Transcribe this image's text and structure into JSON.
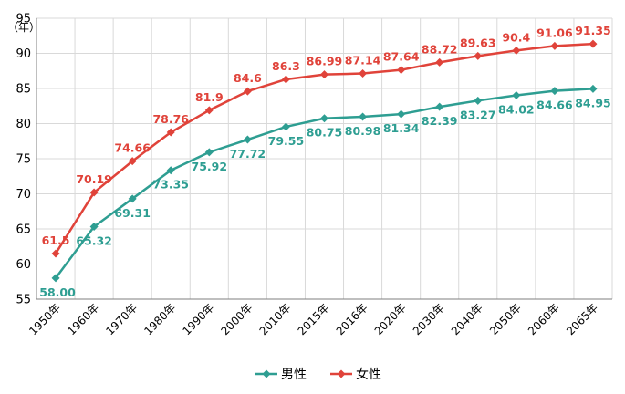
{
  "chart_data": {
    "type": "line",
    "unit_label": "（年）",
    "categories": [
      "1950年",
      "1960年",
      "1970年",
      "1980年",
      "1990年",
      "2000年",
      "2010年",
      "2015年",
      "2016年",
      "2020年",
      "2030年",
      "2040年",
      "2050年",
      "2060年",
      "2065年"
    ],
    "ylim": [
      55,
      95
    ],
    "yticks": [
      55,
      60,
      65,
      70,
      75,
      80,
      85,
      90,
      95
    ],
    "grid": true,
    "legend_position": "bottom",
    "series": [
      {
        "name": "男性",
        "color": "#2e9e92",
        "values": [
          58.0,
          65.32,
          69.31,
          73.35,
          75.92,
          77.72,
          79.55,
          80.75,
          80.98,
          81.34,
          82.39,
          83.27,
          84.02,
          84.66,
          84.95
        ],
        "labels": [
          "58.00",
          "65.32",
          "69.31",
          "73.35",
          "75.92",
          "77.72",
          "79.55",
          "80.75",
          "80.98",
          "81.34",
          "82.39",
          "83.27",
          "84.02",
          "84.66",
          "84.95"
        ]
      },
      {
        "name": "女性",
        "color": "#e0433a",
        "values": [
          61.5,
          70.19,
          74.66,
          78.76,
          81.9,
          84.6,
          86.3,
          86.99,
          87.14,
          87.64,
          88.72,
          89.63,
          90.4,
          91.06,
          91.35
        ],
        "labels": [
          "61.5",
          "70.19",
          "74.66",
          "78.76",
          "81.9",
          "84.6",
          "86.3",
          "86.99",
          "87.14",
          "87.64",
          "88.72",
          "89.63",
          "90.4",
          "91.06",
          "91.35"
        ]
      }
    ]
  }
}
